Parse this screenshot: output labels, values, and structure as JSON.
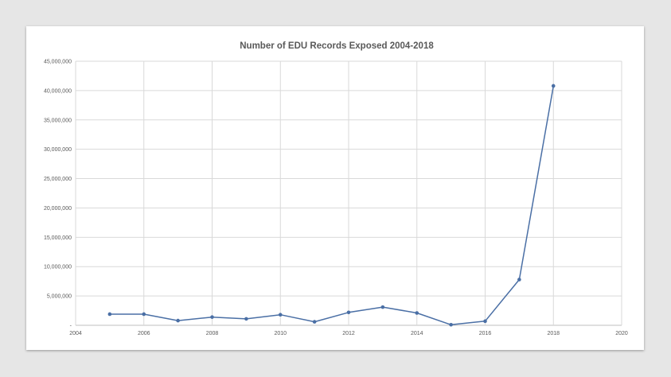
{
  "chart_data": {
    "type": "line",
    "title": "Number of EDU Records Exposed 2004-2018",
    "xlabel": "",
    "ylabel": "",
    "xlim": [
      2004,
      2020
    ],
    "ylim": [
      0,
      45000000
    ],
    "x_ticks": [
      2004,
      2006,
      2008,
      2010,
      2012,
      2014,
      2016,
      2018,
      2020
    ],
    "y_ticks": [
      0,
      5000000,
      10000000,
      15000000,
      20000000,
      25000000,
      30000000,
      35000000,
      40000000,
      45000000
    ],
    "y_tick_labels": [
      "-",
      "5,000,000",
      "10,000,000",
      "15,000,000",
      "20,000,000",
      "25,000,000",
      "30,000,000",
      "35,000,000",
      "40,000,000",
      "45,000,000"
    ],
    "grid": true,
    "legend": "none",
    "series": [
      {
        "color": "#4a6fa5",
        "x": [
          2005,
          2006,
          2007,
          2008,
          2009,
          2010,
          2011,
          2012,
          2013,
          2014,
          2015,
          2016,
          2017,
          2018
        ],
        "y": [
          1900000,
          1900000,
          800000,
          1400000,
          1100000,
          1800000,
          600000,
          2200000,
          3100000,
          2100000,
          100000,
          700000,
          7800000,
          40800000
        ]
      }
    ]
  }
}
